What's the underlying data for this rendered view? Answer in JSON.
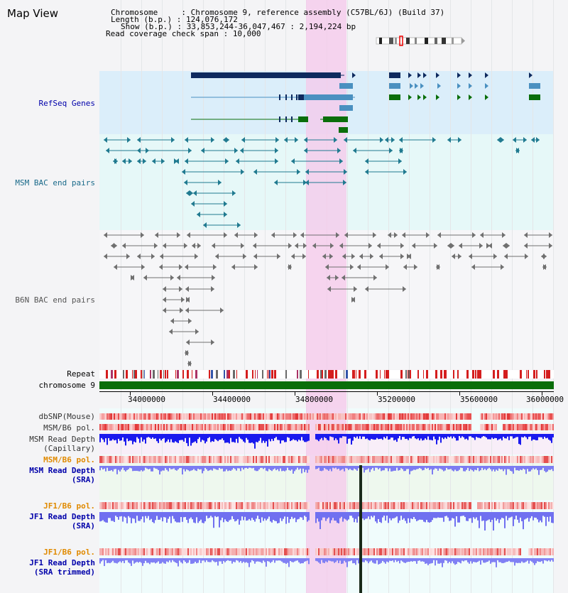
{
  "title": "Map View",
  "header": {
    "chromosome_key": "Chromosome     : ",
    "chromosome_val": "Chromosome 9, reference assembly (C57BL/6J) (Build 37)",
    "length_key": "Length (b.p.) : ",
    "length_val": "124,076,172",
    "show_key": "Show (b.p.) : ",
    "show_val": "33,853,244-36,047,467 : 2,194,224 bp",
    "span_key": "Read coverage check span : ",
    "span_val": "10,000"
  },
  "tracks": {
    "refseq": "RefSeq Genes",
    "msm_bac": "MSM BAC end pairs",
    "b6n_bac": "B6N BAC end pairs",
    "repeat": "Repeat",
    "chromosome": "chromosome 9",
    "dbsnp": "dbSNP(Mouse)",
    "msm_b6_pol_1": "MSM/B6 pol.",
    "msm_read_depth_cap_1": "MSM Read Depth",
    "msm_read_depth_cap_2": "(Capillary)",
    "msm_b6_pol_2": "MSM/B6 pol.",
    "msm_read_depth_sra_1": "MSM Read Depth",
    "msm_read_depth_sra_2": "(SRA)",
    "jf1_b6_pol_1": "JF1/B6 pol.",
    "jf1_read_depth_sra_1": "JF1 Read Depth",
    "jf1_read_depth_sra_2": "(SRA)",
    "jf1_b6_pol_2": "JF1/B6 pol.",
    "jf1_read_depth_trim_1": "JF1 Read Depth",
    "jf1_read_depth_trim_2": "(SRA trimmed)"
  },
  "axis": {
    "ticks": [
      "34000000",
      "34400000",
      "34800000",
      "35200000",
      "35600000",
      "36000000"
    ]
  },
  "colors": {
    "refseq_bg": "#dbeefa",
    "msm_bg": "#e6f8f8",
    "b6n_bg": "#f4f4f8",
    "highlight": "#f6d5ee",
    "gene_dark": "#0e2a5e",
    "gene_mid": "#4a90c0",
    "gene_green": "#0a6e0a",
    "msm_pair": "#207a90",
    "b6n_pair": "#707070",
    "chrom_bar": "#0a6e0a",
    "depth_blue": "#1a1aee",
    "depth_light": "#7c7cf2",
    "label_blue": "#0000aa",
    "label_teal": "#1a6a8a",
    "label_orange": "#e08a00"
  }
}
